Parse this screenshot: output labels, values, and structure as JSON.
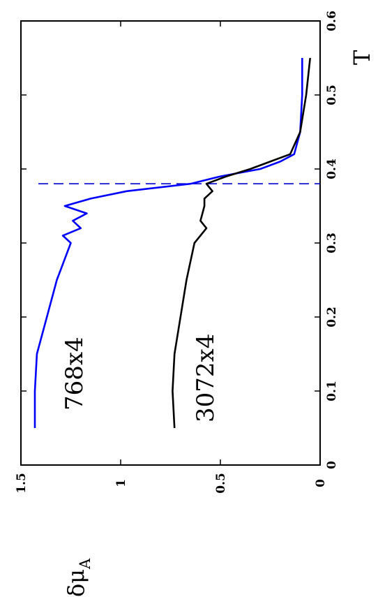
{
  "chart_data": {
    "type": "line",
    "title": "",
    "xlabel": "T",
    "ylabel": "δμ_A",
    "ylabel_main": "δμ",
    "ylabel_sub": "A",
    "xlim": [
      0,
      0.6
    ],
    "ylim": [
      0,
      1.5
    ],
    "x_ticks": [
      "0",
      "0.1",
      "0.2",
      "0.3",
      "0.4",
      "0.5",
      "0.6"
    ],
    "y_ticks": [
      "0",
      "0.5",
      "1",
      "1.5"
    ],
    "grid": false,
    "orientation": "rotated 90° counter-clockwise",
    "reference_line": {
      "x": 0.38,
      "style": "dashed",
      "color": "#0000cc"
    },
    "series": [
      {
        "name": "768x4",
        "color": "#0000ff",
        "x": [
          0.05,
          0.1,
          0.15,
          0.25,
          0.3,
          0.31,
          0.32,
          0.33,
          0.34,
          0.35,
          0.36,
          0.37,
          0.38,
          0.39,
          0.4,
          0.41,
          0.42,
          0.45,
          0.5,
          0.55
        ],
        "y": [
          1.43,
          1.43,
          1.42,
          1.32,
          1.25,
          1.29,
          1.2,
          1.24,
          1.17,
          1.28,
          1.15,
          0.97,
          0.65,
          0.5,
          0.3,
          0.2,
          0.13,
          0.1,
          0.09,
          0.09
        ]
      },
      {
        "name": "3072x4",
        "color": "#000000",
        "x": [
          0.05,
          0.1,
          0.15,
          0.25,
          0.3,
          0.31,
          0.32,
          0.33,
          0.34,
          0.35,
          0.36,
          0.37,
          0.38,
          0.39,
          0.4,
          0.41,
          0.42,
          0.45,
          0.5,
          0.55
        ],
        "y": [
          0.73,
          0.74,
          0.73,
          0.67,
          0.63,
          0.6,
          0.57,
          0.6,
          0.59,
          0.58,
          0.58,
          0.54,
          0.57,
          0.47,
          0.35,
          0.25,
          0.15,
          0.1,
          0.07,
          0.05
        ]
      }
    ]
  }
}
